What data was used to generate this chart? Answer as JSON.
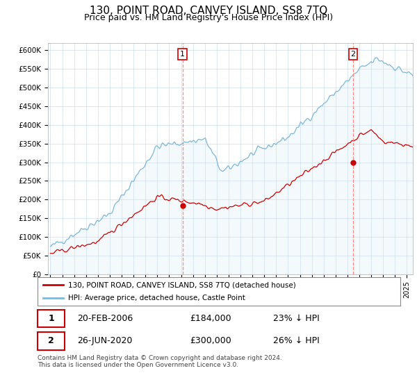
{
  "title": "130, POINT ROAD, CANVEY ISLAND, SS8 7TQ",
  "subtitle": "Price paid vs. HM Land Registry's House Price Index (HPI)",
  "title_fontsize": 11,
  "subtitle_fontsize": 9,
  "hpi_color": "#7db8d8",
  "hpi_fill_color": "#ddeef7",
  "price_color": "#cc0000",
  "vline_color": "#ff8888",
  "marker1_label": "20-FEB-2006",
  "marker1_price": "£184,000",
  "marker1_pct": "23% ↓ HPI",
  "marker2_label": "26-JUN-2020",
  "marker2_price": "£300,000",
  "marker2_pct": "26% ↓ HPI",
  "sale1_year": 2006.12,
  "sale2_year": 2020.47,
  "sale1_price": 184000,
  "sale2_price": 300000,
  "legend_line1": "130, POINT ROAD, CANVEY ISLAND, SS8 7TQ (detached house)",
  "legend_line2": "HPI: Average price, detached house, Castle Point",
  "footnote": "Contains HM Land Registry data © Crown copyright and database right 2024.\nThis data is licensed under the Open Government Licence v3.0.",
  "ylim": [
    0,
    620000
  ],
  "ytick_labels": [
    "£0",
    "£50K",
    "£100K",
    "£150K",
    "£200K",
    "£250K",
    "£300K",
    "£350K",
    "£400K",
    "£450K",
    "£500K",
    "£550K",
    "£600K"
  ],
  "ytick_values": [
    0,
    50000,
    100000,
    150000,
    200000,
    250000,
    300000,
    350000,
    400000,
    450000,
    500000,
    550000,
    600000
  ],
  "background_color": "#ffffff",
  "grid_color": "#ccddee"
}
